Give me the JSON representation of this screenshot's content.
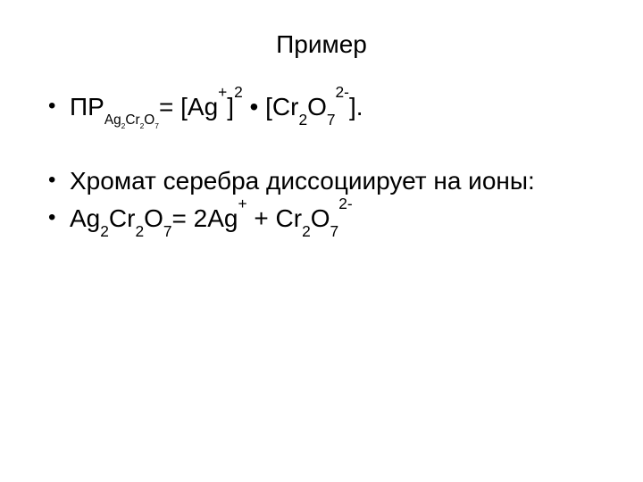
{
  "slide": {
    "background_color": "#ffffff",
    "text_color": "#000000",
    "title": {
      "text": "Пример",
      "fontsize": 28,
      "align": "center",
      "weight": "normal"
    },
    "body_fontsize": 28,
    "bullet_glyph": "•",
    "bullets": [
      {
        "kind": "formula",
        "id": "sp-expression",
        "segments": {
          "t1": "ПР",
          "sub1_pre": "Ag",
          "sub1_n1": "2",
          "sub1_mid": "Cr",
          "sub1_n2": "2",
          "sub1_post": "O",
          "sub1_n3": "7",
          "t2": "= [Ag",
          "sup_ag": "+",
          "t3": "]",
          "sup_sq": "2",
          "t4": " ",
          "dot": "•",
          "t5": " [Cr",
          "sub_cr": "2",
          "t6": "O",
          "sub_o": "7",
          "sup_charge": "2-",
          "t7": "]."
        }
      },
      {
        "kind": "spacer"
      },
      {
        "kind": "text",
        "id": "dissoc-label",
        "text": "Хромат серебра диссоциирует на ионы:"
      },
      {
        "kind": "formula",
        "id": "dissoc-eq",
        "segments": {
          "a1": "Ag",
          "s1": "2",
          "a2": "Cr",
          "s2": "2",
          "a3": "O",
          "s3": "7",
          "a4": "= 2Ag",
          "p1": "+",
          "a5": " + Cr",
          "s4": "2",
          "a6": "O",
          "s5": "7",
          "p2": "2-"
        }
      }
    ]
  }
}
